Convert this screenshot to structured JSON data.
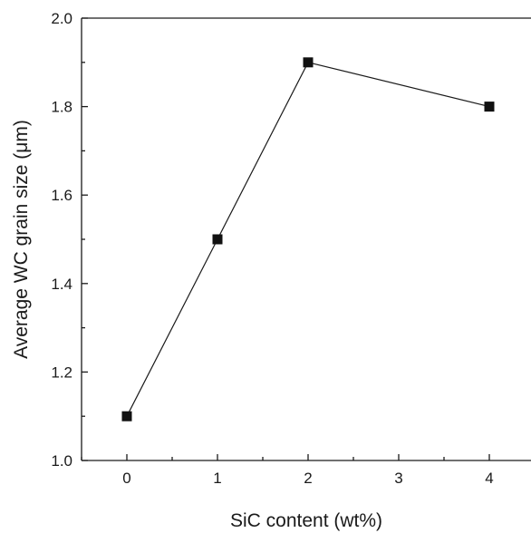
{
  "chart_data": {
    "type": "line",
    "title": "",
    "xlabel": "SiC content (wt%)",
    "ylabel": "Average WC grain size (μm)",
    "xlim": [
      -0.5,
      4.5
    ],
    "ylim": [
      1.0,
      2.0
    ],
    "xticks": [
      0,
      1,
      2,
      3,
      4
    ],
    "xtick_labels": [
      "0",
      "1",
      "2",
      "3",
      "4"
    ],
    "yticks": [
      1.0,
      1.2,
      1.4,
      1.6,
      1.8,
      2.0
    ],
    "ytick_labels": [
      "1.0",
      "1.2",
      "1.4",
      "1.6",
      "1.8",
      "2.0"
    ],
    "grid": false,
    "legend": "none",
    "marker": "filled-square",
    "line_color": "#1a1a1a",
    "series": [
      {
        "x": [
          0,
          1,
          2,
          4
        ],
        "values": [
          1.1,
          1.5,
          1.9,
          1.8
        ]
      }
    ]
  }
}
